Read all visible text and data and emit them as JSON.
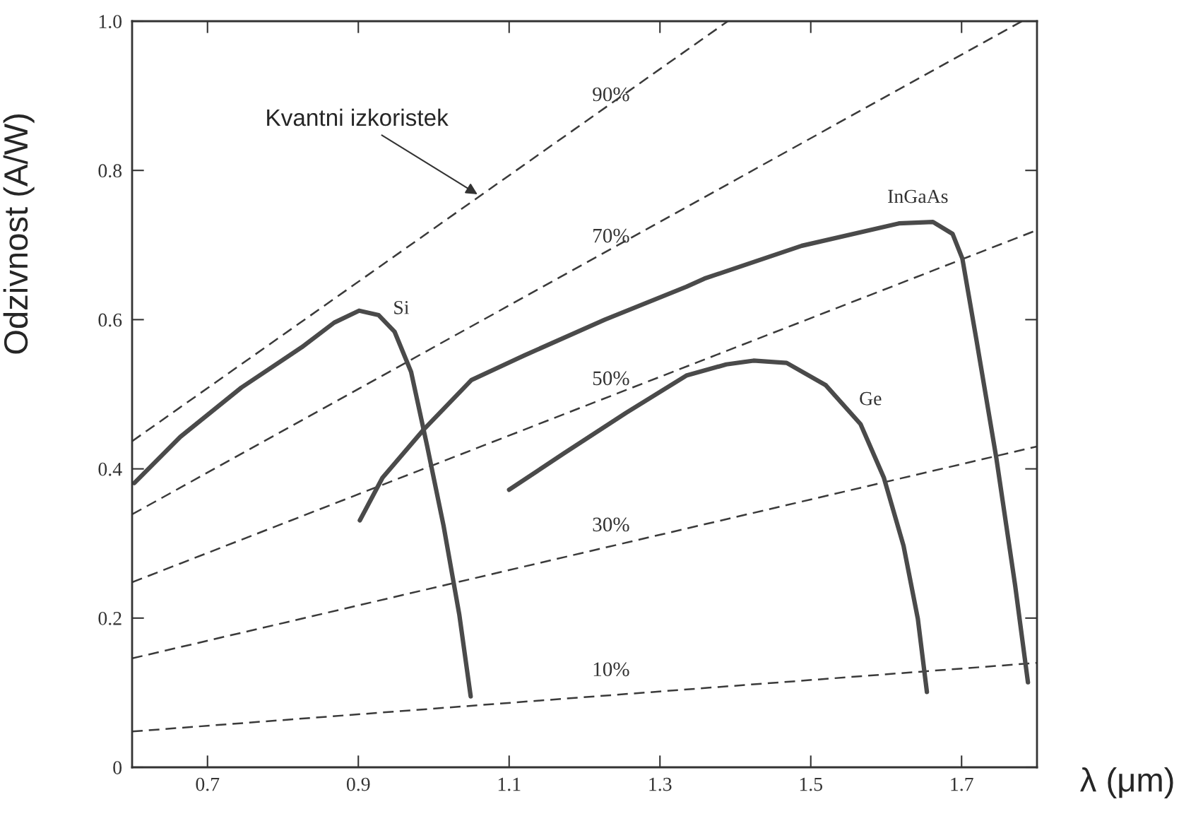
{
  "chart_data": {
    "type": "line",
    "xlabel": "λ (μm)",
    "ylabel": "Odzivnost (A/W)",
    "xlim": [
      0.6,
      1.8
    ],
    "ylim": [
      0,
      1.0
    ],
    "xticks": [
      0.7,
      0.9,
      1.1,
      1.3,
      1.5,
      1.7
    ],
    "yticks": [
      {
        "value": 0,
        "label": "0"
      },
      {
        "value": 0.2,
        "label": "0.2"
      },
      {
        "value": 0.4,
        "label": "0.4"
      },
      {
        "value": 0.6,
        "label": "0.6"
      },
      {
        "value": 0.8,
        "label": "0.8"
      },
      {
        "value": 1.0,
        "label": "1.0"
      }
    ],
    "grid": false,
    "legend": false,
    "annotations": [
      {
        "text": "Kvantni izkoristek",
        "x": 1.058,
        "y": 0.768
      }
    ],
    "series": [
      {
        "name": "10%",
        "color": "#3a3a3a",
        "line_style": "dashed",
        "x": [
          0.6,
          1.8
        ],
        "values": [
          0.048,
          0.14
        ]
      },
      {
        "name": "30%",
        "color": "#3a3a3a",
        "line_style": "dashed",
        "x": [
          0.6,
          1.8
        ],
        "values": [
          0.146,
          0.43
        ]
      },
      {
        "name": "50%",
        "color": "#3a3a3a",
        "line_style": "dashed",
        "x": [
          0.6,
          1.8
        ],
        "values": [
          0.248,
          0.72
        ]
      },
      {
        "name": "70%",
        "color": "#3a3a3a",
        "line_style": "dashed",
        "x": [
          0.6,
          1.78
        ],
        "values": [
          0.339,
          1.0
        ]
      },
      {
        "name": "90%",
        "color": "#3a3a3a",
        "line_style": "dashed",
        "x": [
          0.6,
          1.39
        ],
        "values": [
          0.437,
          1.0
        ]
      },
      {
        "name": "Si",
        "color": "#4a4a4a",
        "line_style": "solid",
        "x": [
          0.603,
          0.664,
          0.745,
          0.825,
          0.868,
          0.901,
          0.927,
          0.948,
          0.97,
          0.991,
          1.013,
          1.034,
          1.049
        ],
        "values": [
          0.381,
          0.443,
          0.509,
          0.563,
          0.596,
          0.612,
          0.606,
          0.584,
          0.53,
          0.432,
          0.324,
          0.204,
          0.095
        ]
      },
      {
        "name": "InGaAs",
        "color": "#4a4a4a",
        "line_style": "solid",
        "x": [
          0.902,
          0.932,
          0.987,
          1.05,
          1.12,
          1.227,
          1.335,
          1.359,
          1.488,
          1.617,
          1.662,
          1.688,
          1.701,
          1.72,
          1.746,
          1.771,
          1.788
        ],
        "values": [
          0.331,
          0.388,
          0.453,
          0.519,
          0.552,
          0.6,
          0.644,
          0.655,
          0.699,
          0.729,
          0.731,
          0.715,
          0.682,
          0.571,
          0.415,
          0.244,
          0.114
        ]
      },
      {
        "name": "Ge",
        "color": "#4a4a4a",
        "line_style": "solid",
        "x": [
          1.1,
          1.173,
          1.255,
          1.335,
          1.388,
          1.424,
          1.468,
          1.52,
          1.566,
          1.597,
          1.623,
          1.642,
          1.654
        ],
        "values": [
          0.372,
          0.421,
          0.475,
          0.525,
          0.54,
          0.545,
          0.542,
          0.512,
          0.46,
          0.388,
          0.297,
          0.199,
          0.101
        ]
      }
    ]
  }
}
